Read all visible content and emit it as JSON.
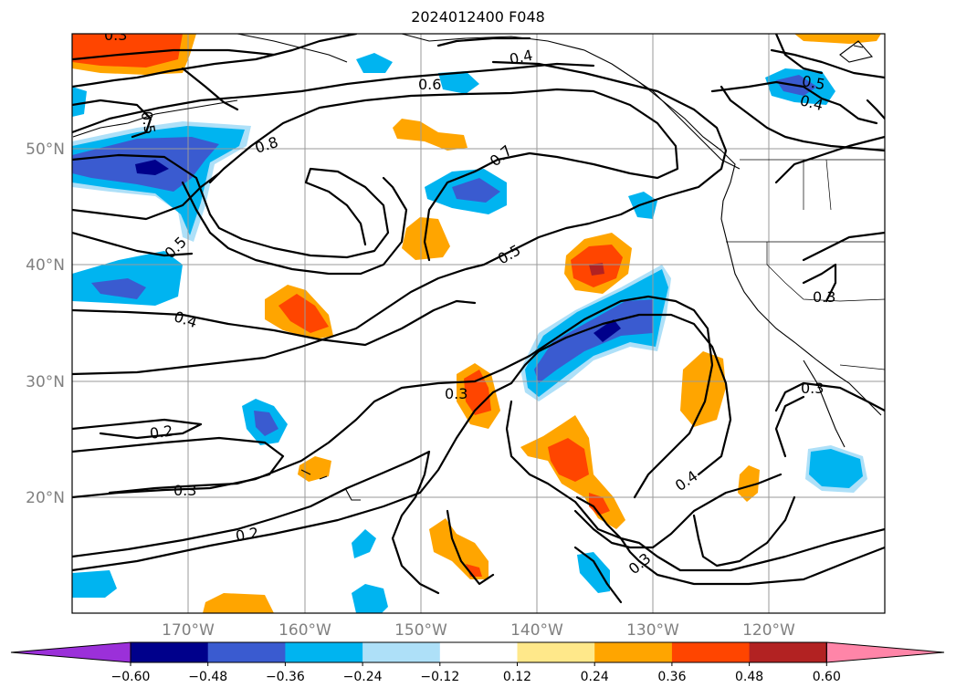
{
  "title": "2024012400 F048",
  "map": {
    "lat_labels": [
      "50°N",
      "40°N",
      "30°N",
      "20°N"
    ],
    "lon_labels": [
      "170°W",
      "160°W",
      "150°W",
      "140°W",
      "130°W",
      "120°W"
    ],
    "contour_labels": [
      "0.3",
      "0.4",
      "0.6",
      "0.8",
      "0.7",
      "0.5",
      "0.5",
      "0.4",
      "0.5",
      "0.4",
      "0.3",
      "0.3",
      "0.3",
      "0.2",
      "0.3",
      "0.2",
      "0.4",
      "0.3",
      "0.5"
    ]
  },
  "colorbar": {
    "ticks": [
      "−0.60",
      "−0.48",
      "−0.36",
      "−0.24",
      "−0.12",
      "0.12",
      "0.24",
      "0.36",
      "0.48",
      "0.60"
    ],
    "colors": [
      "#9b30d9",
      "#00008b",
      "#3a5bd0",
      "#00b4f0",
      "#aee0f8",
      "#ffffff",
      "#ffe88a",
      "#ffa500",
      "#ff4500",
      "#b22222",
      "#ff85a8"
    ]
  }
}
